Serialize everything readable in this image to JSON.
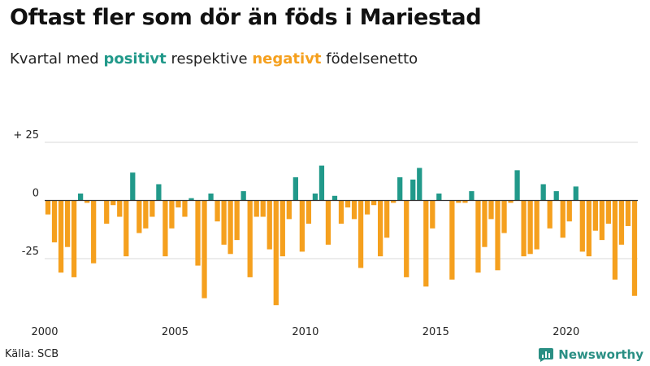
{
  "header": {
    "title": "Oftast fler som dör än föds i Mariestad",
    "subtitle_prefix": "Kvartal med",
    "subtitle_positive": "positivt",
    "subtitle_middle": "respektive",
    "subtitle_negative": "negativt",
    "subtitle_suffix": "födelsenetto"
  },
  "colors": {
    "positive": "#21998a",
    "negative": "#f5a01e",
    "grid": "#d9d9d9",
    "zero_line": "#333333",
    "brand": "#2a8f84"
  },
  "chart_data": {
    "type": "bar",
    "title": "Oftast fler som dör än föds i Mariestad",
    "subtitle": "Kvartal med positivt respektive negativt födelsenetto",
    "xlabel": "",
    "ylabel": "",
    "x_start": 2000,
    "periods_per_year": 4,
    "ylim": [
      -45,
      25
    ],
    "y_ticks": [
      {
        "value": 25,
        "label": "+ 25"
      },
      {
        "value": 0,
        "label": "0"
      },
      {
        "value": -25,
        "label": "-25"
      }
    ],
    "x_ticks": [
      {
        "value": 2000,
        "label": "2000"
      },
      {
        "value": 2005,
        "label": "2005"
      },
      {
        "value": 2010,
        "label": "2010"
      },
      {
        "value": 2015,
        "label": "2015"
      },
      {
        "value": 2020,
        "label": "2020"
      }
    ],
    "values": [
      -6,
      -18,
      -31,
      -20,
      -33,
      3,
      -1,
      -27,
      0,
      -10,
      -2,
      -7,
      -24,
      12,
      -14,
      -12,
      -7,
      7,
      -24,
      -12,
      -3,
      -7,
      1,
      -28,
      -42,
      3,
      -9,
      -19,
      -23,
      -17,
      4,
      -33,
      -7,
      -7,
      -21,
      -45,
      -24,
      -8,
      10,
      -22,
      -10,
      3,
      15,
      -19,
      2,
      -10,
      -3,
      -8,
      -29,
      -6,
      -2,
      -24,
      -16,
      -1,
      10,
      -33,
      9,
      14,
      -37,
      -12,
      3,
      0,
      -34,
      -1,
      -1,
      4,
      -31,
      -20,
      -8,
      -30,
      -14,
      -1,
      13,
      -24,
      -23,
      -21,
      7,
      -12,
      4,
      -16,
      -9,
      6,
      -22,
      -24,
      -13,
      -17,
      -10,
      -34,
      -19,
      -11,
      -41
    ]
  },
  "footer": {
    "source": "Källa: SCB",
    "brand": "Newsworthy"
  }
}
